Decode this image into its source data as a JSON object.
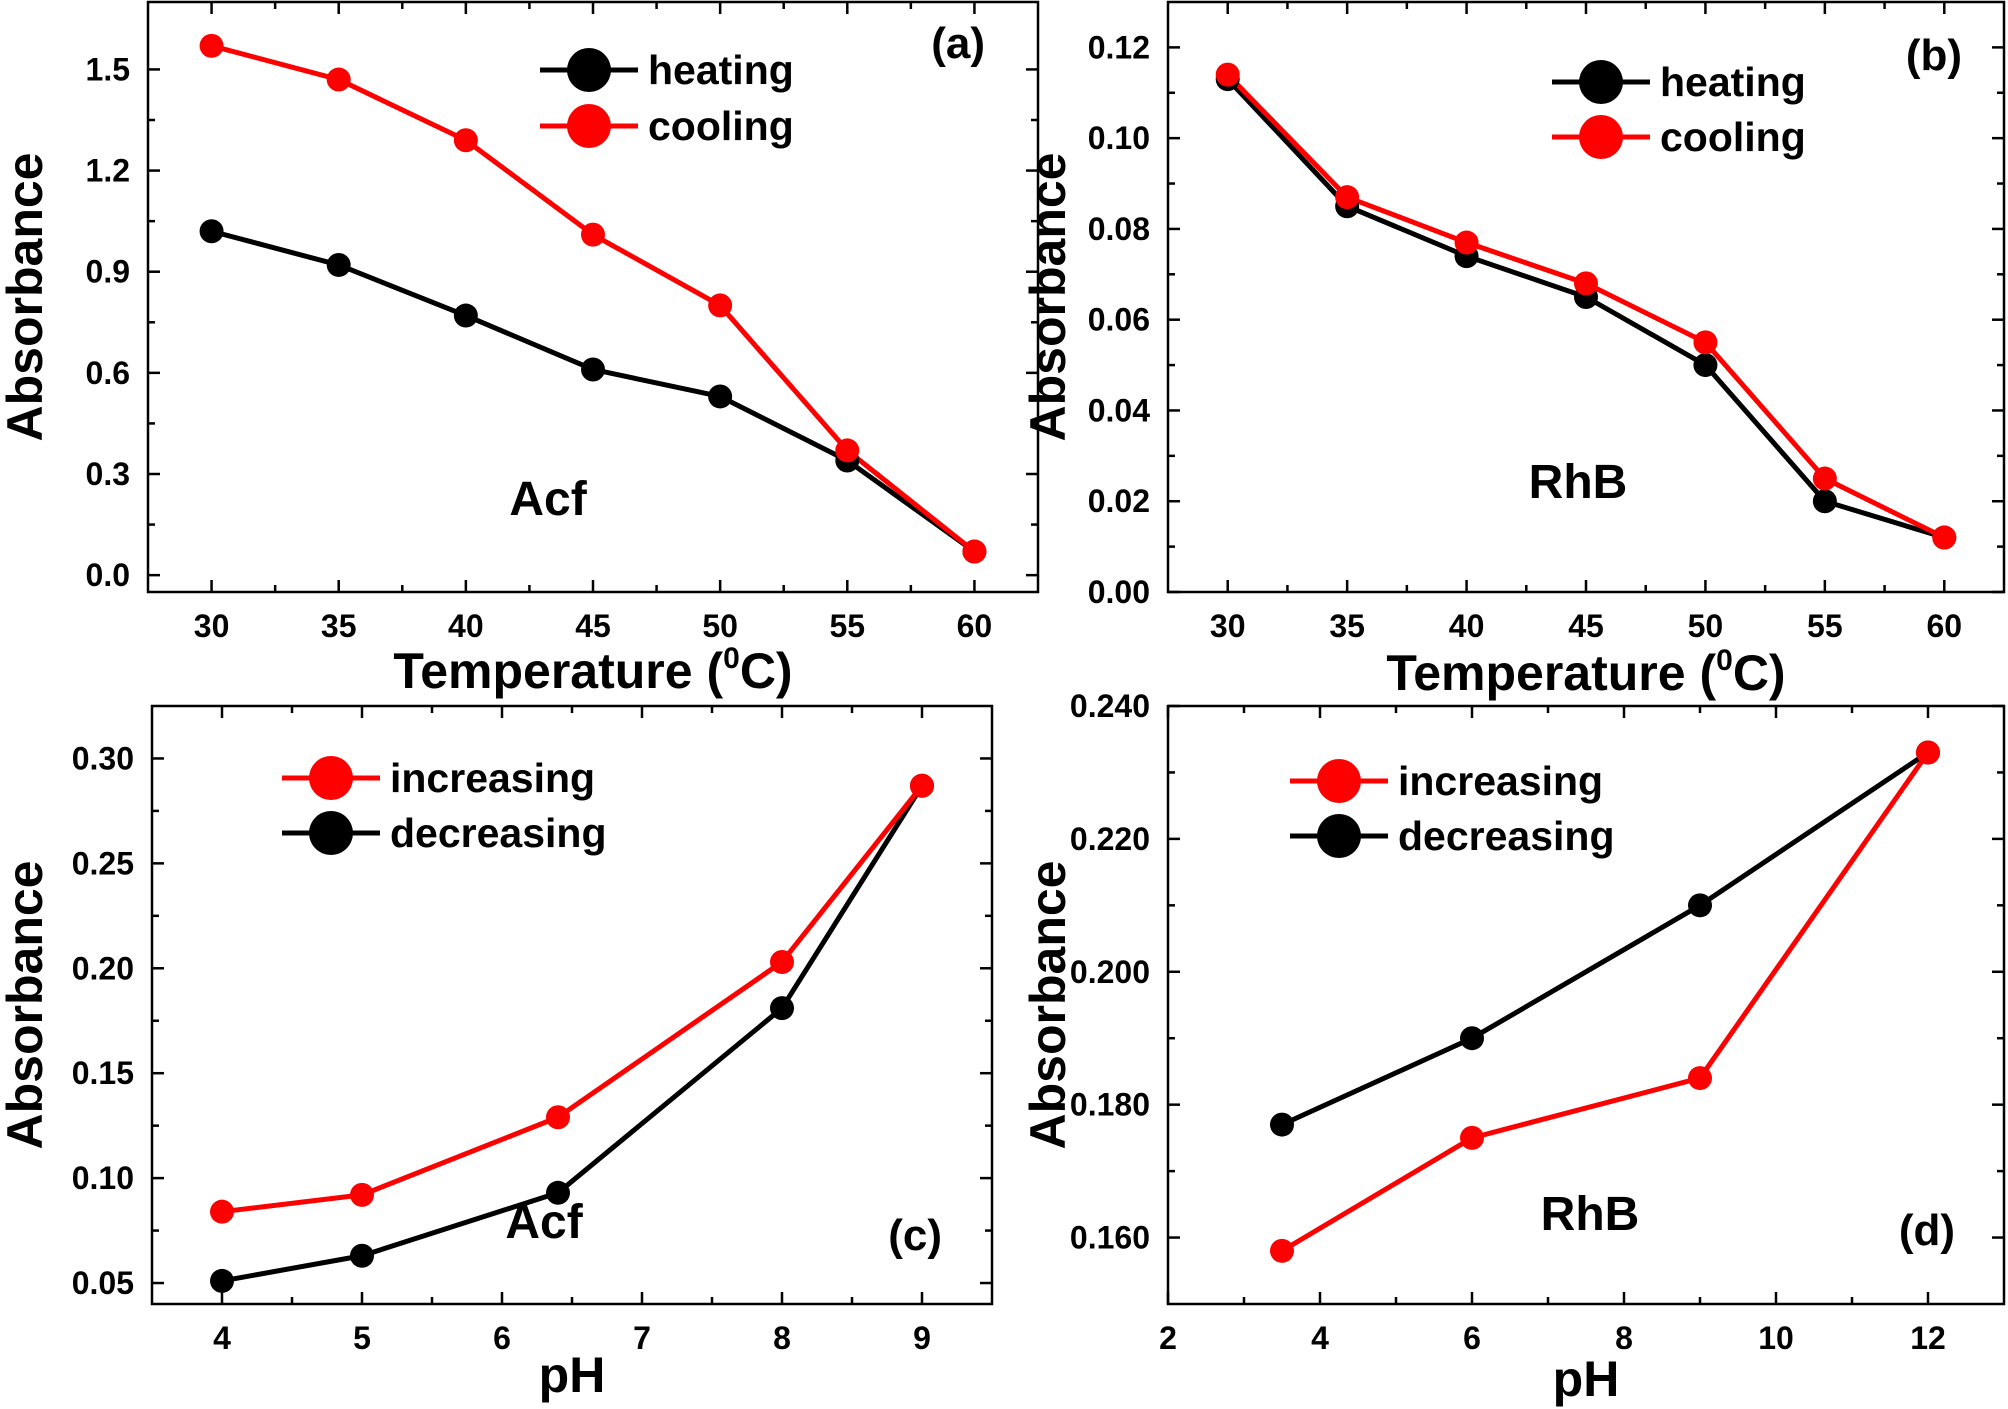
{
  "chart_data": [
    {
      "type": "line",
      "panel": "(a)",
      "xlabel": "Temperature (",
      "xlabel_sup": "0",
      "xlabel_tail": "C)",
      "ylabel": "Absorbance",
      "annotation": "Acf",
      "xlim": [
        27.5,
        62.5
      ],
      "ylim": [
        -0.05,
        1.7
      ],
      "xticks": [
        30,
        35,
        40,
        45,
        50,
        55,
        60
      ],
      "xtick_labels": [
        "30",
        "35",
        "40",
        "45",
        "50",
        "55",
        "60"
      ],
      "yticks": [
        0.0,
        0.3,
        0.6,
        0.9,
        1.2,
        1.5
      ],
      "ytick_labels": [
        "0.0",
        "0.3",
        "0.6",
        "0.9",
        "1.2",
        "1.5"
      ],
      "x": [
        30,
        35,
        40,
        45,
        50,
        55,
        60
      ],
      "legend_position": "top-right",
      "series": [
        {
          "name": "heating",
          "color": "#000000",
          "values": [
            1.02,
            0.92,
            0.77,
            0.61,
            0.53,
            0.34,
            0.07
          ]
        },
        {
          "name": "cooling",
          "color": "#ff0000",
          "values": [
            1.57,
            1.47,
            1.29,
            1.01,
            0.8,
            0.37,
            0.07
          ]
        }
      ],
      "legend_order": [
        0,
        1
      ]
    },
    {
      "type": "line",
      "panel": "(b)",
      "xlabel": "Temperature (",
      "xlabel_sup": "0",
      "xlabel_tail": "C)",
      "ylabel": "Absorbance",
      "annotation": "RhB",
      "xlim": [
        27.5,
        62.5
      ],
      "ylim": [
        0.0,
        0.13
      ],
      "xticks": [
        30,
        35,
        40,
        45,
        50,
        55,
        60
      ],
      "xtick_labels": [
        "30",
        "35",
        "40",
        "45",
        "50",
        "55",
        "60"
      ],
      "yticks": [
        0.0,
        0.02,
        0.04,
        0.06,
        0.08,
        0.1,
        0.12
      ],
      "ytick_labels": [
        "0.00",
        "0.02",
        "0.04",
        "0.06",
        "0.08",
        "0.10",
        "0.12"
      ],
      "x": [
        30,
        35,
        40,
        45,
        50,
        55,
        60
      ],
      "legend_position": "top-right",
      "series": [
        {
          "name": "heating",
          "color": "#000000",
          "values": [
            0.113,
            0.085,
            0.074,
            0.065,
            0.05,
            0.02,
            0.012
          ]
        },
        {
          "name": "cooling",
          "color": "#ff0000",
          "values": [
            0.114,
            0.087,
            0.077,
            0.068,
            0.055,
            0.025,
            0.012
          ]
        }
      ],
      "legend_order": [
        0,
        1
      ]
    },
    {
      "type": "line",
      "panel": "(c)",
      "xlabel": "pH",
      "ylabel": "Absorbance",
      "annotation": "Acf",
      "xlim": [
        3.5,
        9.5
      ],
      "ylim": [
        0.04,
        0.325
      ],
      "xticks": [
        4,
        5,
        6,
        7,
        8,
        9
      ],
      "xtick_labels": [
        "4",
        "5",
        "6",
        "7",
        "8",
        "9"
      ],
      "yticks": [
        0.05,
        0.1,
        0.15,
        0.2,
        0.25,
        0.3
      ],
      "ytick_labels": [
        "0.05",
        "0.10",
        "0.15",
        "0.20",
        "0.25",
        "0.30"
      ],
      "x": [
        4,
        5,
        6.4,
        8,
        9
      ],
      "legend_position": "top-left",
      "series": [
        {
          "name": "decreasing",
          "color": "#000000",
          "values": [
            0.051,
            0.063,
            0.093,
            0.181,
            0.287
          ]
        },
        {
          "name": "increasing",
          "color": "#ff0000",
          "values": [
            0.084,
            0.092,
            0.129,
            0.203,
            0.287
          ]
        }
      ],
      "legend_order": [
        1,
        0
      ]
    },
    {
      "type": "line",
      "panel": "(d)",
      "xlabel": "pH",
      "ylabel": "Absorbance",
      "annotation": "RhB",
      "xlim": [
        2,
        13
      ],
      "ylim": [
        0.15,
        0.24
      ],
      "xticks": [
        2,
        4,
        6,
        8,
        10,
        12
      ],
      "xtick_labels": [
        "2",
        "4",
        "6",
        "8",
        "10",
        "12"
      ],
      "yticks": [
        0.16,
        0.18,
        0.2,
        0.22,
        0.24
      ],
      "ytick_labels": [
        "0.160",
        "0.180",
        "0.200",
        "0.220",
        "0.240"
      ],
      "x": [
        3.5,
        6,
        9,
        12
      ],
      "legend_position": "top-left",
      "series": [
        {
          "name": "decreasing",
          "color": "#000000",
          "values": [
            0.177,
            0.19,
            0.21,
            0.233
          ]
        },
        {
          "name": "increasing",
          "color": "#ff0000",
          "values": [
            0.158,
            0.175,
            0.184,
            0.233
          ]
        }
      ],
      "legend_order": [
        1,
        0
      ]
    }
  ]
}
